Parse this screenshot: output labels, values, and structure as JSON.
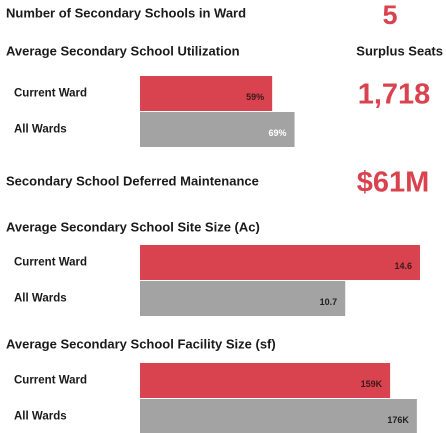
{
  "kpis": [
    {
      "label": "Number of Secondary Schools in Ward",
      "value": 5
    },
    {
      "label": "Surplus Seats",
      "value": "1,718"
    },
    {
      "label": "Secondary School Deferred Maintenance",
      "value": "$61M"
    }
  ],
  "chart_data": [
    {
      "type": "bar",
      "orientation": "horizontal",
      "title": "Average Secondary School Utilization",
      "categories": [
        "Current Ward",
        "All Wards"
      ],
      "values": [
        59,
        69
      ],
      "value_labels": [
        "59%",
        "69%"
      ],
      "colors": [
        "#d9434f",
        "#a3a3a3"
      ],
      "label_colors": [
        "#3a1a1a",
        "#ffffff"
      ],
      "xlim": [
        0,
        125
      ]
    },
    {
      "type": "bar",
      "orientation": "horizontal",
      "title": "Average Secondary School Site Size (Ac)",
      "categories": [
        "Current Ward",
        "All Wards"
      ],
      "values": [
        14.6,
        10.7
      ],
      "colors": [
        "#d9434f",
        "#a3a3a3"
      ],
      "label_colors": [
        "#3a1a1a",
        "#222222"
      ],
      "xlim": [
        0,
        14.6
      ]
    },
    {
      "type": "bar",
      "orientation": "horizontal",
      "title": "Average Secondary School Facility Size (sf)",
      "categories": [
        "Current Ward",
        "All Wards"
      ],
      "values": [
        159000,
        176000
      ],
      "value_labels": [
        "159K",
        "176K"
      ],
      "colors": [
        "#d9434f",
        "#a3a3a3"
      ],
      "label_colors": [
        "#3a1a1a",
        "#222222"
      ],
      "xlim": [
        0,
        178000
      ]
    }
  ]
}
